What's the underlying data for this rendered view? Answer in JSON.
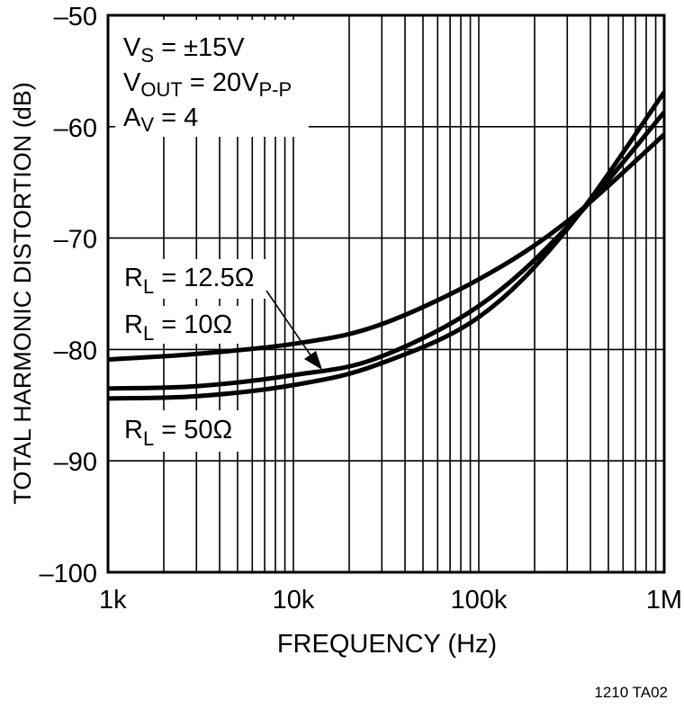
{
  "chart_data": {
    "type": "line",
    "title": "",
    "xlabel": "FREQUENCY (Hz)",
    "ylabel": "TOTAL HARMONIC DISTORTION (dB)",
    "xscale": "log",
    "xlim": [
      1000,
      1000000
    ],
    "ylim": [
      -100,
      -50
    ],
    "grid": true,
    "x_ticks": [
      "1k",
      "10k",
      "100k",
      "1M"
    ],
    "y_ticks": [
      "-50",
      "-60",
      "-70",
      "-80",
      "-90",
      "-100"
    ],
    "conditions": [
      "V_S = ±15V",
      "V_OUT = 20V_P-P",
      "A_V = 4"
    ],
    "x": [
      1000,
      3000,
      10000,
      28000,
      100000,
      300000,
      1000000
    ],
    "series": [
      {
        "name": "R_L = 10Ω",
        "values": [
          -80.9,
          -80.4,
          -79.5,
          -77.9,
          -73.7,
          -68.5,
          -60.7
        ]
      },
      {
        "name": "R_L = 12.5Ω",
        "values": [
          -83.5,
          -83.3,
          -82.3,
          -80.8,
          -76.1,
          -69.0,
          -58.7
        ]
      },
      {
        "name": "R_L = 50Ω",
        "values": [
          -84.4,
          -84.2,
          -83.2,
          -81.4,
          -77.1,
          -69.2,
          -56.9
        ]
      }
    ],
    "annotations": [
      "R_L = 12.5Ω (arrow to middle curve)",
      "R_L = 10Ω",
      "R_L = 50Ω"
    ],
    "figure_id": "1210 TA02"
  },
  "labels": {
    "ylabel": "TOTAL HARMONIC DISTORTION (dB)",
    "xlabel": "FREQUENCY (Hz)",
    "figure_id": "1210 TA02",
    "y_ticks": [
      "–50",
      "–60",
      "–70",
      "–80",
      "–90",
      "–100"
    ],
    "x_ticks": [
      "1k",
      "10k",
      "100k",
      "1M"
    ],
    "cond_vs_main": "V",
    "cond_vs_sub": "S",
    "cond_vs_rest": " = ±15V",
    "cond_vout_main": "V",
    "cond_vout_sub": "OUT",
    "cond_vout_rest": " = 20V",
    "cond_vout_sub2": "P-P",
    "cond_av_main": "A",
    "cond_av_sub": "V",
    "cond_av_rest": " = 4",
    "rl125_main": "R",
    "rl125_sub": "L",
    "rl125_rest": " = 12.5Ω",
    "rl10_main": "R",
    "rl10_sub": "L",
    "rl10_rest": " = 10Ω",
    "rl50_main": "R",
    "rl50_sub": "L",
    "rl50_rest": " = 50Ω"
  }
}
